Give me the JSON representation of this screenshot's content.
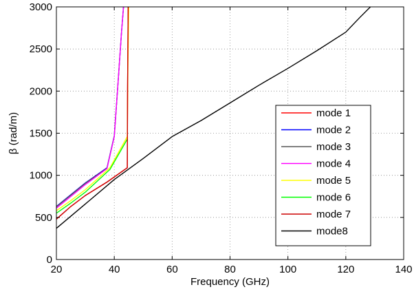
{
  "chart_data": {
    "type": "line",
    "title": "",
    "xlabel": "Frequency (GHz)",
    "ylabel": "β (rad/m)",
    "xlim": [
      20,
      140
    ],
    "ylim": [
      0,
      3000
    ],
    "xticks": [
      20,
      40,
      60,
      80,
      100,
      120,
      140
    ],
    "yticks": [
      0,
      500,
      1000,
      1500,
      2000,
      2500,
      3000
    ],
    "xtick_labels": [
      "20",
      "40",
      "60",
      "80",
      "100",
      "120",
      "140"
    ],
    "ytick_labels": [
      "0",
      "500",
      "1000",
      "1500",
      "2000",
      "2500",
      "3000"
    ],
    "grid": true,
    "legend_position": "right",
    "series": [
      {
        "name": "mode 1",
        "color": "#ff0000",
        "x": [
          20,
          25,
          30,
          37.5,
          44.5,
          44.6,
          44.8
        ],
        "y": [
          480,
          630,
          760,
          920,
          1090,
          2000,
          3000
        ]
      },
      {
        "name": "mode 2",
        "color": "#0000ff",
        "x": [
          20,
          25,
          30,
          37.5,
          40,
          41.5,
          42.5,
          43.2
        ],
        "y": [
          630,
          770,
          910,
          1090,
          1470,
          2200,
          2700,
          3000
        ]
      },
      {
        "name": "mode 3",
        "color": "#555555",
        "x": [
          20,
          25,
          30,
          37.5,
          40,
          41.5,
          42.5,
          43.2
        ],
        "y": [
          625,
          765,
          905,
          1085,
          1465,
          2200,
          2700,
          3000
        ]
      },
      {
        "name": "mode 4",
        "color": "#ff00ff",
        "x": [
          20,
          25,
          30,
          37.5,
          40,
          41.5,
          42.5,
          43.2
        ],
        "y": [
          610,
          750,
          890,
          1080,
          1460,
          2200,
          2700,
          3000
        ]
      },
      {
        "name": "mode 5",
        "color": "#ffff00",
        "x": [
          20,
          25,
          30,
          38.5,
          44.5,
          44.7,
          45
        ],
        "y": [
          580,
          700,
          830,
          1090,
          1460,
          2200,
          3000
        ]
      },
      {
        "name": "mode 6",
        "color": "#00ff00",
        "x": [
          20,
          25,
          30,
          38.5,
          44.5
        ],
        "y": [
          550,
          670,
          800,
          1070,
          1430
        ]
      },
      {
        "name": "mode 7",
        "color": "#cc0000",
        "x": [
          20,
          25,
          30,
          37.5,
          44.5,
          44.6,
          44.8
        ],
        "y": [
          480,
          630,
          760,
          920,
          1090,
          2000,
          3000
        ]
      },
      {
        "name": "mode8",
        "color": "#000000",
        "x": [
          20,
          30,
          40,
          50,
          60,
          70,
          80,
          90,
          100,
          110,
          120,
          125,
          128.5
        ],
        "y": [
          370,
          660,
          950,
          1200,
          1460,
          1650,
          1860,
          2070,
          2270,
          2480,
          2700,
          2880,
          3000
        ]
      }
    ]
  }
}
